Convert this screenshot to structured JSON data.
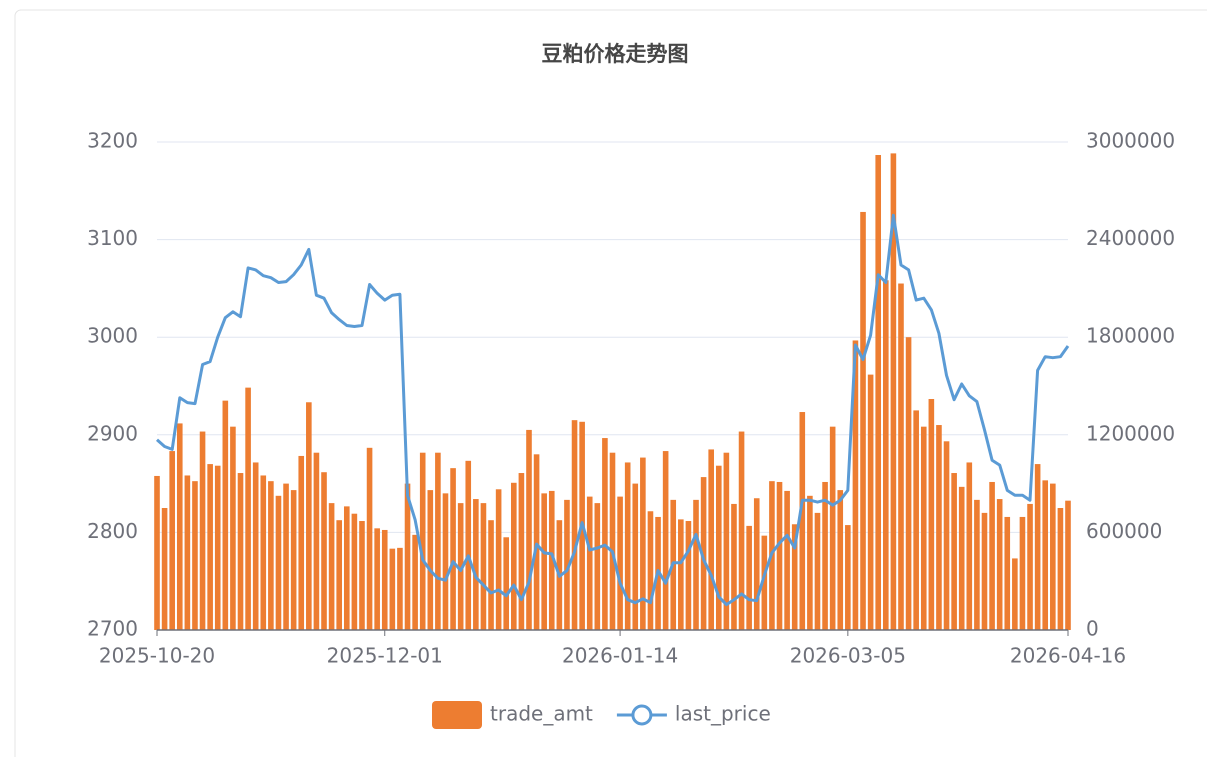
{
  "chart_data": {
    "type": "bar-line",
    "title": "豆粕价格走势图",
    "categories": [
      "2025-10-20",
      null,
      null,
      null,
      null,
      null,
      null,
      null,
      null,
      null,
      null,
      null,
      null,
      null,
      null,
      null,
      null,
      null,
      null,
      null,
      null,
      null,
      null,
      null,
      null,
      null,
      null,
      null,
      null,
      null,
      "2025-12-01",
      null,
      null,
      null,
      null,
      null,
      null,
      null,
      null,
      null,
      null,
      null,
      null,
      null,
      null,
      null,
      null,
      null,
      null,
      null,
      null,
      null,
      null,
      null,
      null,
      null,
      null,
      null,
      null,
      null,
      null,
      "2026-01-14",
      null,
      null,
      null,
      null,
      null,
      null,
      null,
      null,
      null,
      null,
      null,
      null,
      null,
      null,
      null,
      null,
      null,
      null,
      null,
      null,
      null,
      null,
      null,
      null,
      null,
      null,
      null,
      null,
      null,
      "2026-03-05",
      null,
      null,
      null,
      null,
      null,
      null,
      null,
      null,
      null,
      null,
      null,
      null,
      null,
      null,
      null,
      null,
      null,
      null,
      null,
      null,
      null,
      null,
      null,
      null,
      null,
      null,
      null,
      null,
      "2026-04-16"
    ],
    "series": [
      {
        "name": "trade_amt",
        "type": "bar",
        "axis": "y2",
        "color": "#ed7d31",
        "values": [
          947000,
          750000,
          1100000,
          1270000,
          950000,
          915000,
          1220000,
          1020000,
          1010000,
          1410000,
          1250000,
          965000,
          1490000,
          1030000,
          950000,
          915000,
          825000,
          900000,
          860000,
          1070000,
          1400000,
          1090000,
          970000,
          780000,
          675000,
          760000,
          715000,
          670000,
          1120000,
          625000,
          615000,
          500000,
          505000,
          900000,
          585000,
          1090000,
          860000,
          1090000,
          840000,
          995000,
          780000,
          1040000,
          805000,
          780000,
          675000,
          865000,
          570000,
          905000,
          965000,
          1230000,
          1080000,
          840000,
          855000,
          675000,
          800000,
          1290000,
          1280000,
          820000,
          780000,
          1180000,
          1090000,
          820000,
          1030000,
          900000,
          1060000,
          730000,
          695000,
          1100000,
          800000,
          680000,
          670000,
          800000,
          940000,
          1110000,
          1010000,
          1090000,
          775000,
          1220000,
          640000,
          810000,
          580000,
          915000,
          910000,
          855000,
          650000,
          1340000,
          825000,
          720000,
          910000,
          1250000,
          860000,
          645000,
          1780000,
          2570000,
          1570000,
          2920000,
          2150000,
          2930000,
          2130000,
          1800000,
          1350000,
          1250000,
          1420000,
          1260000,
          1160000,
          965000,
          880000,
          1030000,
          800000,
          720000,
          910000,
          805000,
          695000,
          440000,
          695000,
          775000,
          1020000,
          920000,
          900000,
          750000,
          795000
        ]
      },
      {
        "name": "last_price",
        "type": "line",
        "axis": "y",
        "color": "#5b9bd5",
        "values": [
          2895,
          2888,
          2885,
          2938,
          2933,
          2932,
          2972,
          2975,
          3000,
          3020,
          3026,
          3021,
          3071,
          3069,
          3063,
          3061,
          3056,
          3057,
          3064,
          3074,
          3090,
          3043,
          3040,
          3025,
          3018,
          3012,
          3011,
          3012,
          3054,
          3045,
          3038,
          3043,
          3044,
          2838,
          2813,
          2772,
          2761,
          2753,
          2751,
          2770,
          2761,
          2776,
          2754,
          2746,
          2738,
          2741,
          2735,
          2746,
          2731,
          2749,
          2788,
          2779,
          2778,
          2755,
          2761,
          2780,
          2810,
          2782,
          2784,
          2787,
          2780,
          2748,
          2731,
          2728,
          2732,
          2728,
          2761,
          2748,
          2769,
          2769,
          2781,
          2798,
          2772,
          2756,
          2734,
          2726,
          2731,
          2737,
          2731,
          2730,
          2756,
          2779,
          2789,
          2797,
          2784,
          2833,
          2833,
          2831,
          2833,
          2828,
          2833,
          2843,
          2992,
          2977,
          3002,
          3064,
          3056,
          3125,
          3074,
          3069,
          3038,
          3040,
          3028,
          3004,
          2961,
          2936,
          2952,
          2940,
          2934,
          2905,
          2874,
          2869,
          2843,
          2838,
          2838,
          2833,
          2966,
          2980,
          2979,
          2980,
          2991
        ]
      }
    ],
    "ylim": [
      2700,
      3200
    ],
    "yticks": [
      2700,
      2800,
      2900,
      3000,
      3100,
      3200
    ],
    "y2lim": [
      0,
      3000000
    ],
    "y2ticks": [
      0,
      600000,
      1200000,
      1800000,
      2400000,
      3000000
    ],
    "grid": true,
    "legend": "bottom"
  }
}
